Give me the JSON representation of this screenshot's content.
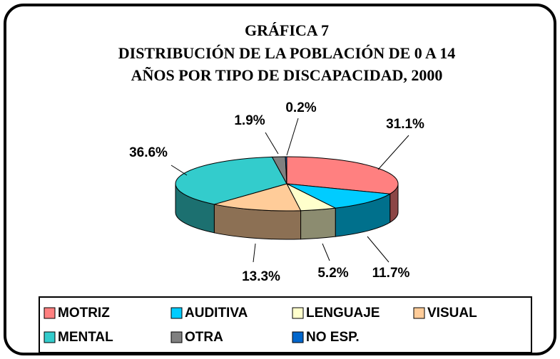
{
  "chart_data": {
    "type": "pie3d",
    "title": "GRÁFICA 7",
    "subtitle": [
      "DISTRIBUCIÓN DE LA POBLACIÓN DE 0 A 14",
      "AÑOS POR TIPO DE DISCAPACIDAD, 2000"
    ],
    "categories": [
      "MOTRIZ",
      "AUDITIVA",
      "LENGUAJE",
      "VISUAL",
      "MENTAL",
      "OTRA",
      "NO ESP."
    ],
    "values": [
      31.1,
      11.7,
      5.2,
      13.3,
      36.6,
      1.9,
      0.2
    ],
    "value_labels": [
      "31.1%",
      "11.7%",
      "5.2%",
      "13.3%",
      "36.6%",
      "1.9%",
      "0.2%"
    ],
    "colors": [
      "#ff8080",
      "#00ccff",
      "#ffffcc",
      "#ffcc99",
      "#33cccc",
      "#808080",
      "#0066cc"
    ],
    "legend": "bottom"
  }
}
